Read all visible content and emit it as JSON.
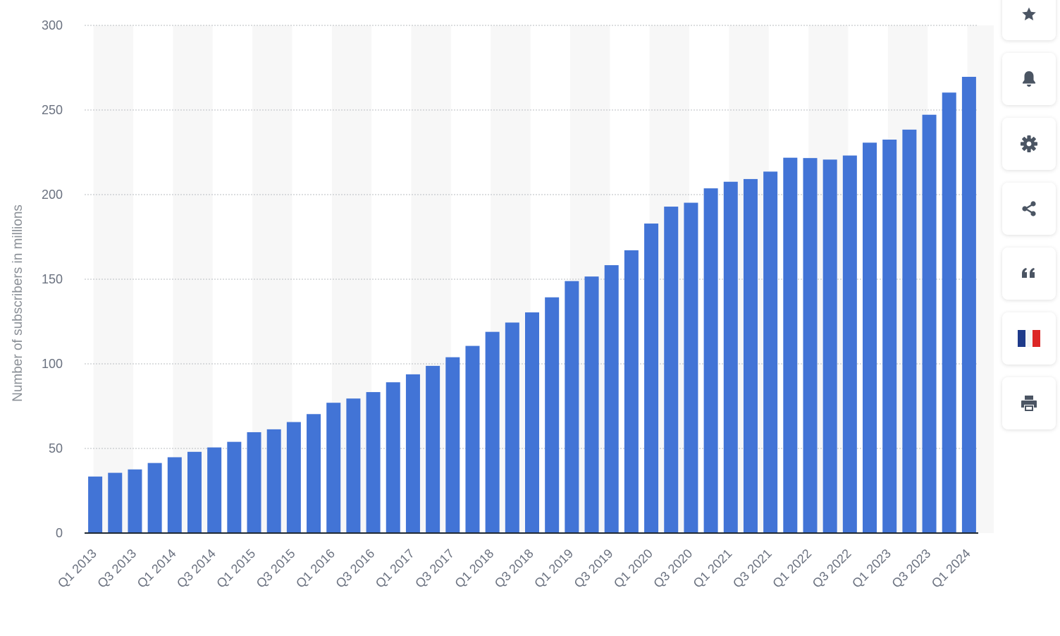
{
  "chart_data": {
    "type": "bar",
    "title": "",
    "xlabel": "",
    "ylabel": "Number of subscribers in millions",
    "ylim": [
      0,
      300
    ],
    "yticks": [
      0,
      50,
      100,
      150,
      200,
      250,
      300
    ],
    "grid": true,
    "bar_color": "#4274d6",
    "categories": [
      "Q1 2013",
      "Q2 2013",
      "Q3 2013",
      "Q4 2013",
      "Q1 2014",
      "Q2 2014",
      "Q3 2014",
      "Q4 2014",
      "Q1 2015",
      "Q2 2015",
      "Q3 2015",
      "Q4 2015",
      "Q1 2016",
      "Q2 2016",
      "Q3 2016",
      "Q4 2016",
      "Q1 2017",
      "Q2 2017",
      "Q3 2017",
      "Q4 2017",
      "Q1 2018",
      "Q2 2018",
      "Q3 2018",
      "Q4 2018",
      "Q1 2019",
      "Q2 2019",
      "Q3 2019",
      "Q4 2019",
      "Q1 2020",
      "Q2 2020",
      "Q3 2020",
      "Q4 2020",
      "Q1 2021",
      "Q2 2021",
      "Q3 2021",
      "Q4 2021",
      "Q1 2022",
      "Q2 2022",
      "Q3 2022",
      "Q4 2022",
      "Q1 2023",
      "Q2 2023",
      "Q3 2023",
      "Q4 2023",
      "Q1 2024"
    ],
    "visible_tick_labels": [
      "Q1 2013",
      "Q3 2013",
      "Q1 2014",
      "Q3 2014",
      "Q1 2015",
      "Q3 2015",
      "Q1 2016",
      "Q3 2016",
      "Q1 2017",
      "Q3 2017",
      "Q1 2018",
      "Q3 2018",
      "Q1 2019",
      "Q3 2019",
      "Q1 2020",
      "Q3 2020",
      "Q1 2021",
      "Q3 2021",
      "Q1 2022",
      "Q3 2022",
      "Q1 2023",
      "Q3 2023",
      "Q1 2024"
    ],
    "values": [
      33.4,
      35.6,
      37.6,
      41.4,
      44.8,
      48.0,
      50.6,
      53.9,
      59.6,
      61.3,
      65.6,
      70.3,
      77.0,
      79.5,
      83.3,
      89.1,
      93.8,
      98.8,
      103.9,
      110.6,
      118.9,
      124.4,
      130.4,
      139.3,
      148.9,
      151.6,
      158.3,
      167.1,
      182.9,
      192.9,
      195.2,
      203.7,
      207.6,
      209.2,
      213.6,
      221.8,
      221.6,
      220.7,
      223.1,
      230.7,
      232.5,
      238.4,
      247.2,
      260.3,
      269.6
    ]
  },
  "sidebar": {
    "buttons": [
      {
        "icon": "star-icon",
        "label": "Bookmark"
      },
      {
        "icon": "bell-icon",
        "label": "Notifications"
      },
      {
        "icon": "gear-icon",
        "label": "Settings"
      },
      {
        "icon": "share-icon",
        "label": "Share"
      },
      {
        "icon": "quote-icon",
        "label": "Cite"
      },
      {
        "icon": "french-flag-icon",
        "label": "Language"
      },
      {
        "icon": "printer-icon",
        "label": "Print"
      }
    ],
    "icon_color": "#4b5563"
  }
}
